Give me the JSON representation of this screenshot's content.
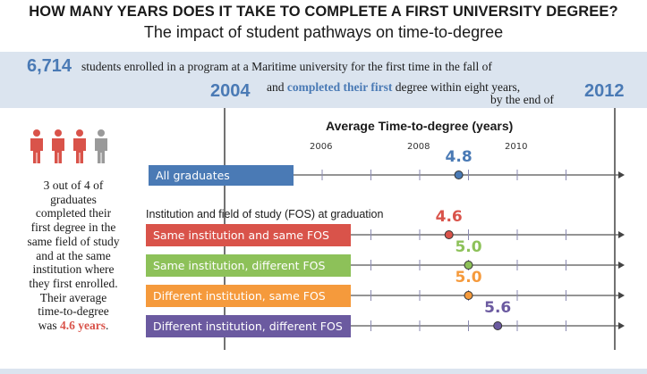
{
  "header": {
    "title": "HOW MANY YEARS DOES IT TAKE TO COMPLETE A FIRST UNIVERSITY DEGREE?",
    "subtitle": "The impact of student pathways on time-to-degree"
  },
  "intro": {
    "count": "6,714",
    "text1": "students enrolled in a program at a Maritime university for the first time in the fall of",
    "start_year": "2004",
    "text2_pre": "and ",
    "text2_hl": "completed their first",
    "text2_post": " degree within eight years,",
    "text3": "by the end of",
    "end_year": "2012"
  },
  "left_panel": {
    "icon_name": "people-icon",
    "people_total": 4,
    "people_highlighted": 3,
    "text_lines": [
      "3 out of 4 of",
      "graduates",
      "completed their",
      "first degree in the",
      "same field of study",
      "and at the same",
      "institution where",
      "they first enrolled.",
      "Their average",
      "time-to-degree"
    ],
    "last_line_pre": "was ",
    "last_line_hl": "4.6 years",
    "last_line_post": "."
  },
  "chart_data": {
    "type": "dot",
    "title": "Average Time-to-degree (years)",
    "tick_labels": [
      "2006",
      "2008",
      "2010"
    ],
    "subheading": "Institution and field of study (FOS) at graduation",
    "series": [
      {
        "name": "All graduates",
        "value": 4.8,
        "value_label": "4.8",
        "color": "#4a7ab5"
      },
      {
        "name": "Same institution and same FOS",
        "value": 4.6,
        "value_label": "4.6",
        "color": "#d9534a"
      },
      {
        "name": "Same institution, different FOS",
        "value": 5.0,
        "value_label": "5.0",
        "color": "#8dc159"
      },
      {
        "name": "Different institution, same FOS",
        "value": 5.0,
        "value_label": "5.0",
        "color": "#f59a3c"
      },
      {
        "name": "Different institution, different FOS",
        "value": 5.6,
        "value_label": "5.6",
        "color": "#6b5aa0"
      }
    ],
    "axis": {
      "start": "2004",
      "end": "2012",
      "years": 8
    }
  }
}
